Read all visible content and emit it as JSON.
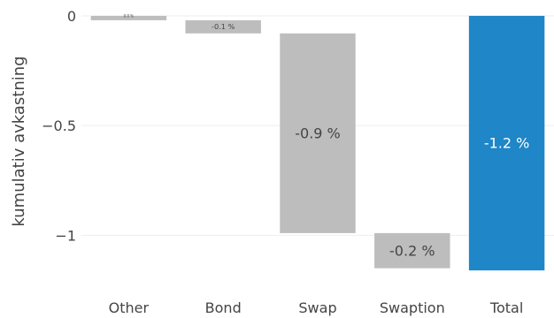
{
  "chart_data": {
    "type": "bar",
    "subtype": "waterfall",
    "categories": [
      "Other",
      "Bond",
      "Swap",
      "Swaption",
      "Total"
    ],
    "values": [
      -0.02,
      -0.06,
      -0.91,
      -0.16,
      -1.16
    ],
    "bar_labels": [
      "0.0 %",
      "-0.1 %",
      "-0.9 %",
      "-0.2 %",
      "-1.2 %"
    ],
    "ylabel": "kumulativ avkastning",
    "ylim": [
      -1.24,
      0.04
    ],
    "yticks": [
      {
        "value": 0,
        "label": "0"
      },
      {
        "value": -0.5,
        "label": "−0.5"
      },
      {
        "value": -1,
        "label": "−1"
      }
    ],
    "grid": true,
    "colors": {
      "step": "#bdbdbd",
      "total": "#1f86c8",
      "step_label": "#444444",
      "total_label": "#ffffff"
    }
  }
}
